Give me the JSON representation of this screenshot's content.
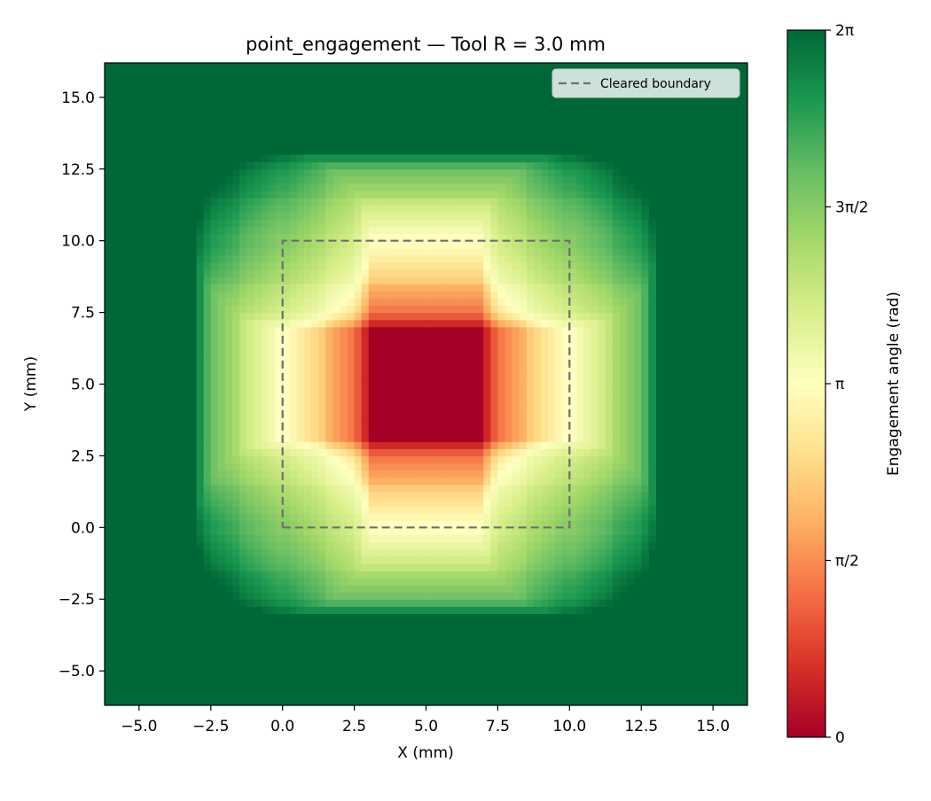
{
  "chart_data": {
    "type": "heatmap",
    "title": "point_engagement — Tool R = 3.0 mm",
    "xlabel": "X (mm)",
    "ylabel": "Y (mm)",
    "xlim": [
      -6.2,
      16.2
    ],
    "ylim": [
      -6.2,
      16.2
    ],
    "grid": false,
    "legend_position": "top-right",
    "tool_radius_mm": 3.0,
    "cell_size_mm": 0.25,
    "x_ticks": [
      {
        "value": -5.0,
        "label": "−5.0"
      },
      {
        "value": -2.5,
        "label": "−2.5"
      },
      {
        "value": 0.0,
        "label": "0.0"
      },
      {
        "value": 2.5,
        "label": "2.5"
      },
      {
        "value": 5.0,
        "label": "5.0"
      },
      {
        "value": 7.5,
        "label": "7.5"
      },
      {
        "value": 10.0,
        "label": "10.0"
      },
      {
        "value": 12.5,
        "label": "12.5"
      },
      {
        "value": 15.0,
        "label": "15.0"
      }
    ],
    "y_ticks": [
      {
        "value": -5.0,
        "label": "−5.0"
      },
      {
        "value": -2.5,
        "label": "−2.5"
      },
      {
        "value": 0.0,
        "label": "0.0"
      },
      {
        "value": 2.5,
        "label": "2.5"
      },
      {
        "value": 5.0,
        "label": "5.0"
      },
      {
        "value": 7.5,
        "label": "7.5"
      },
      {
        "value": 10.0,
        "label": "10.0"
      },
      {
        "value": 12.5,
        "label": "12.5"
      },
      {
        "value": 15.0,
        "label": "15.0"
      }
    ],
    "cleared_boundary": {
      "label": "Cleared boundary",
      "style": "dashed",
      "color": "#6e6e6e",
      "x": [
        0,
        10,
        10,
        0,
        0
      ],
      "y": [
        0,
        0,
        10,
        10,
        0
      ]
    },
    "colorbar": {
      "label": "Engagement angle (rad)",
      "colormap": "RdYlGn",
      "range": [
        0,
        6.283185
      ],
      "ticks": [
        {
          "value": 0,
          "label": "0"
        },
        {
          "value": 1.570796,
          "label": "π/2"
        },
        {
          "value": 3.141593,
          "label": "π"
        },
        {
          "value": 4.712389,
          "label": "3π/2"
        },
        {
          "value": 6.283185,
          "label": "2π"
        }
      ]
    }
  }
}
